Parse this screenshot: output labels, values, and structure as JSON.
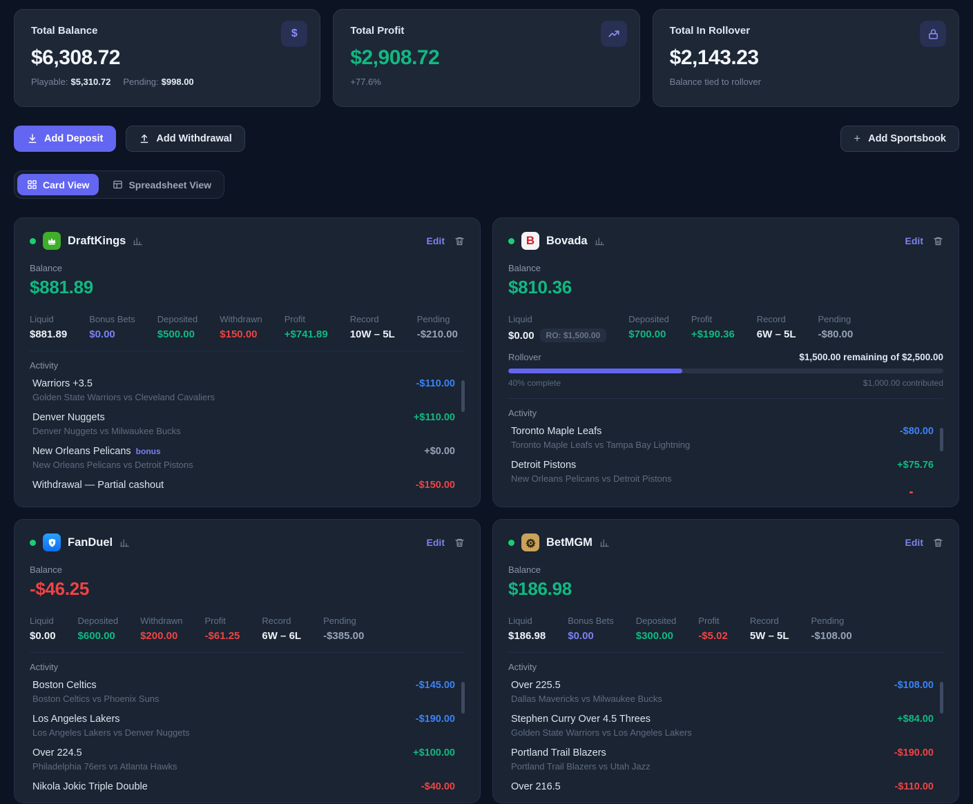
{
  "summary": {
    "balance": {
      "title": "Total Balance",
      "value": "$6,308.72",
      "playable_label": "Playable:",
      "playable_value": "$5,310.72",
      "pending_label": "Pending:",
      "pending_value": "$998.00",
      "icon": "dollar-icon"
    },
    "profit": {
      "title": "Total Profit",
      "value": "$2,908.72",
      "change": "+77.6%",
      "icon": "trend-up-icon"
    },
    "rollover": {
      "title": "Total In Rollover",
      "value": "$2,143.23",
      "note": "Balance tied to rollover",
      "icon": "lock-icon"
    }
  },
  "actions": {
    "add_deposit": "Add Deposit",
    "add_withdrawal": "Add Withdrawal",
    "add_sportsbook": "Add Sportsbook",
    "add_sportsbook_plus": "+"
  },
  "view_toggle": {
    "card": "Card View",
    "spreadsheet": "Spreadsheet View",
    "active": "card"
  },
  "labels": {
    "balance": "Balance",
    "activity": "Activity",
    "edit": "Edit",
    "rollover": "Rollover"
  },
  "colors": {
    "accent": "#6366f1",
    "positive": "#10b981",
    "negative": "#ef4444",
    "pending_bet": "#3b82f6",
    "status_dot": "#19cf73"
  },
  "sportsbooks": [
    {
      "name": "DraftKings",
      "logo_icon": "draftkings-crown-logo",
      "balance": {
        "value": "$881.89",
        "color": "green"
      },
      "stats": [
        {
          "label": "Liquid",
          "value": "$881.89",
          "color": "white"
        },
        {
          "label": "Bonus Bets",
          "value": "$0.00",
          "color": "purple"
        },
        {
          "label": "Deposited",
          "value": "$500.00",
          "color": "green"
        },
        {
          "label": "Withdrawn",
          "value": "$150.00",
          "color": "red"
        },
        {
          "label": "Profit",
          "value": "+$741.89",
          "color": "green"
        },
        {
          "label": "Record",
          "value": "10W – 5L",
          "color": "white"
        },
        {
          "label": "Pending",
          "value": "-$210.00",
          "color": "muted"
        }
      ],
      "activity": [
        {
          "title": "Warriors +3.5",
          "sub": "Golden State Warriors vs Cleveland Cavaliers",
          "amount": "-$110.00",
          "color": "blue"
        },
        {
          "title": "Denver Nuggets",
          "sub": "Denver Nuggets vs Milwaukee Bucks",
          "amount": "+$110.00",
          "color": "green"
        },
        {
          "title": "New Orleans Pelicans",
          "badge": "bonus",
          "sub": "New Orleans Pelicans vs Detroit Pistons",
          "amount": "+$0.00",
          "color": "muted"
        },
        {
          "title": "Withdrawal — Partial cashout",
          "sub": "",
          "amount": "-$150.00",
          "color": "red"
        }
      ]
    },
    {
      "name": "Bovada",
      "logo_icon": "bovada-b-logo",
      "logo_letter": "B",
      "balance": {
        "value": "$810.36",
        "color": "green"
      },
      "stats": [
        {
          "label": "Liquid",
          "value": "$0.00",
          "color": "white",
          "badge": "RO: $1,500.00"
        },
        {
          "label": "Deposited",
          "value": "$700.00",
          "color": "green"
        },
        {
          "label": "Profit",
          "value": "+$190.36",
          "color": "green"
        },
        {
          "label": "Record",
          "value": "6W – 5L",
          "color": "white"
        },
        {
          "label": "Pending",
          "value": "-$80.00",
          "color": "muted"
        }
      ],
      "rollover": {
        "remaining": "$1,500.00 remaining of $2,500.00",
        "percent": 40,
        "complete": "40% complete",
        "contributed": "$1,000.00 contributed"
      },
      "activity": [
        {
          "title": "Toronto Maple Leafs",
          "sub": "Toronto Maple Leafs vs Tampa Bay Lightning",
          "amount": "-$80.00",
          "color": "blue"
        },
        {
          "title": "Detroit Pistons",
          "sub": "New Orleans Pelicans vs Detroit Pistons",
          "amount": "+$75.76",
          "color": "green"
        }
      ]
    },
    {
      "name": "FanDuel",
      "logo_icon": "fanduel-shield-logo",
      "balance": {
        "value": "-$46.25",
        "color": "red"
      },
      "stats": [
        {
          "label": "Liquid",
          "value": "$0.00",
          "color": "white"
        },
        {
          "label": "Deposited",
          "value": "$600.00",
          "color": "green"
        },
        {
          "label": "Withdrawn",
          "value": "$200.00",
          "color": "red"
        },
        {
          "label": "Profit",
          "value": "-$61.25",
          "color": "red"
        },
        {
          "label": "Record",
          "value": "6W – 6L",
          "color": "white"
        },
        {
          "label": "Pending",
          "value": "-$385.00",
          "color": "muted"
        }
      ],
      "activity": [
        {
          "title": "Boston Celtics",
          "sub": "Boston Celtics vs Phoenix Suns",
          "amount": "-$145.00",
          "color": "blue"
        },
        {
          "title": "Los Angeles Lakers",
          "sub": "Los Angeles Lakers vs Denver Nuggets",
          "amount": "-$190.00",
          "color": "blue"
        },
        {
          "title": "Over 224.5",
          "sub": "Philadelphia 76ers vs Atlanta Hawks",
          "amount": "+$100.00",
          "color": "green"
        },
        {
          "title": "Nikola Jokic Triple Double",
          "sub": "",
          "amount": "-$40.00",
          "color": "red"
        }
      ]
    },
    {
      "name": "BetMGM",
      "logo_icon": "betmgm-lion-logo",
      "balance": {
        "value": "$186.98",
        "color": "green"
      },
      "stats": [
        {
          "label": "Liquid",
          "value": "$186.98",
          "color": "white"
        },
        {
          "label": "Bonus Bets",
          "value": "$0.00",
          "color": "purple"
        },
        {
          "label": "Deposited",
          "value": "$300.00",
          "color": "green"
        },
        {
          "label": "Profit",
          "value": "-$5.02",
          "color": "red"
        },
        {
          "label": "Record",
          "value": "5W – 5L",
          "color": "white"
        },
        {
          "label": "Pending",
          "value": "-$108.00",
          "color": "muted"
        }
      ],
      "activity": [
        {
          "title": "Over 225.5",
          "sub": "Dallas Mavericks vs Milwaukee Bucks",
          "amount": "-$108.00",
          "color": "blue"
        },
        {
          "title": "Stephen Curry Over 4.5 Threes",
          "sub": "Golden State Warriors vs Los Angeles Lakers",
          "amount": "+$84.00",
          "color": "green"
        },
        {
          "title": "Portland Trail Blazers",
          "sub": "Portland Trail Blazers vs Utah Jazz",
          "amount": "-$190.00",
          "color": "red"
        },
        {
          "title": "Over 216.5",
          "sub": "",
          "amount": "-$110.00",
          "color": "red"
        }
      ]
    }
  ]
}
